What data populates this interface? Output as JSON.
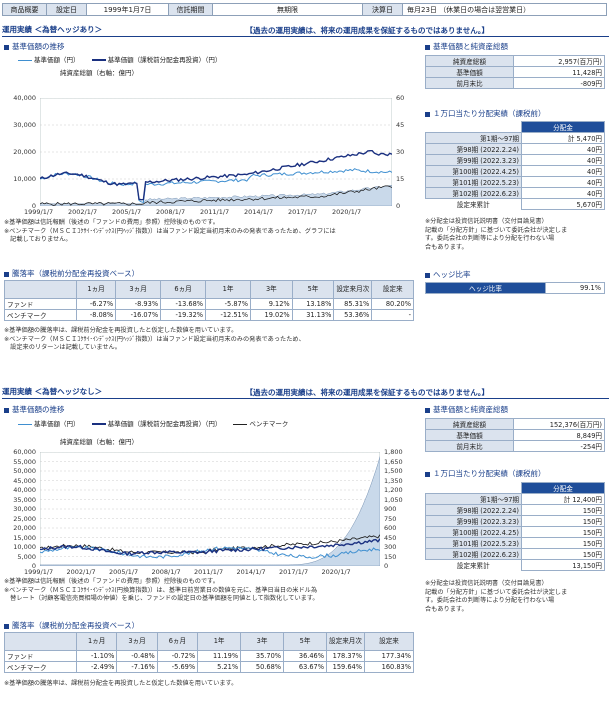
{
  "info": {
    "product_label": "商品概要",
    "setup_label": "設定日",
    "setup_value": "1999年1月7日",
    "term_label": "信託期間",
    "term_value": "無期限",
    "settle_label": "決算日",
    "settle_value": "毎月23日 （休業日の場合は翌営業日）"
  },
  "sections": [
    {
      "title": "運用実績 ＜為替ヘッジあり＞",
      "disclaimer": "【過去の運用実績は、将来の運用成果を保証するものではありません。】",
      "nav_title": "基準価額の推移",
      "legend": {
        "nav": "基準価額（円）",
        "reinvest": "基準価額（課税前分配金再投資）（円）",
        "bench": "",
        "aum": "純資産総額（右軸：億円）"
      },
      "yaxis_left": [
        "40,000",
        "30,000",
        "20,000",
        "10,000",
        "0"
      ],
      "yaxis_right": [
        "60",
        "45",
        "30",
        "15",
        "0"
      ],
      "xaxis": [
        "1999/1/7",
        "2002/1/7",
        "2005/1/7",
        "2008/1/7",
        "2011/1/7",
        "2014/1/7",
        "2017/1/7",
        "2020/1/7"
      ],
      "chart_notes": [
        "※基準価額は信託報酬（後述の「ファンドの費用」参照）控除後のものです。",
        "※ベンチマーク（ＭＳＣＩｺｸｻｲ･ｲﾝﾃﾞｯｸｽ(円ﾍｯｼﾞ指数)）は当ファンド設定当初月末のみの発表であったため、グラフには",
        "　記載しておりません。"
      ],
      "ret_title": "騰落率（課税前分配金再投資ベース）",
      "ret_headers": [
        "",
        "1ヵ月",
        "3ヵ月",
        "6ヵ月",
        "1年",
        "3年",
        "5年",
        "設定来月次",
        "設定来"
      ],
      "ret_rows": [
        [
          "ファンド",
          "-6.27%",
          "-8.93%",
          "-13.68%",
          "-5.87%",
          "9.12%",
          "13.18%",
          "85.31%",
          "80.20%"
        ],
        [
          "ベンチマーク",
          "-8.08%",
          "-16.07%",
          "-19.32%",
          "-12.51%",
          "19.02%",
          "31.13%",
          "53.36%",
          "-"
        ]
      ],
      "ret_notes": [
        "※基準価額の騰落率は、課税前分配金を再投資したと仮定した数値を用いています。",
        "※ベンチマーク（ＭＳＣＩｺｸｻｲ･ｲﾝﾃﾞｯｸｽ(円ﾍｯｼﾞ指数)）は当ファンド設定当初月末のみの発表であったため、",
        "　設定来のリターンは記載していません。"
      ],
      "nav_box_title": "基準価額と純資産総額",
      "nav_box": [
        [
          "純資産総額",
          "2,957(百万円)"
        ],
        [
          "基準価額",
          "11,428円"
        ],
        [
          "前月末比",
          "-809円"
        ]
      ],
      "dist_title": "１万口当たり分配実績（課税前）",
      "dist_header": "分配金",
      "dist_rows": [
        [
          "第1期～97期",
          "計 5,470円"
        ],
        [
          "第98期 (2022.2.24)",
          "40円"
        ],
        [
          "第99期 (2022.3.23)",
          "40円"
        ],
        [
          "第100期 (2022.4.25)",
          "40円"
        ],
        [
          "第101期 (2022.5.23)",
          "40円"
        ],
        [
          "第102期 (2022.6.23)",
          "40円"
        ],
        [
          "設定来累計",
          "5,670円"
        ]
      ],
      "dist_notes": [
        "※分配金は投資信託説明書（交付目論見書）",
        "記載の「分配方針」に基づいて委託会社が決定しま",
        "す。委託会社の判断等により分配を行わない場",
        "合もあります。"
      ],
      "hedge_title": "ヘッジ比率",
      "hedge_label": "ヘッジ比率",
      "hedge_value": "99.1%"
    },
    {
      "title": "運用実績 ＜為替ヘッジなし＞",
      "disclaimer": "【過去の運用実績は、将来の運用成果を保証するものではありません。】",
      "nav_title": "基準価額の推移",
      "legend": {
        "nav": "基準価額（円）",
        "reinvest": "基準価額（課税前分配金再投資）（円）",
        "bench": "ベンチマーク",
        "aum": "純資産総額（右軸：億円）"
      },
      "yaxis_left": [
        "60,000",
        "55,000",
        "50,000",
        "45,000",
        "40,000",
        "35,000",
        "30,000",
        "25,000",
        "20,000",
        "15,000",
        "10,000",
        "5,000",
        "0"
      ],
      "yaxis_right": [
        "1,800",
        "1,650",
        "1,500",
        "1,350",
        "1,200",
        "1,050",
        "900",
        "750",
        "600",
        "450",
        "300",
        "150",
        "0"
      ],
      "xaxis": [
        "1999/1/7",
        "2002/1/7",
        "2005/1/7",
        "2008/1/7",
        "2011/1/7",
        "2014/1/7",
        "2017/1/7",
        "2020/1/7"
      ],
      "chart_notes": [
        "※基準価額は信託報酬（後述の「ファンドの費用」参照）控除後のものです。",
        "※ベンチマーク（ＭＳＣＩｺｸｻｲ･ｲﾝﾃﾞｯｸｽ(円換算指数)）は、基準日前営業日の数値を元に、基準日当日の米ドル為",
        "　替レート（対顧客電信売買相場の仲値）を乗じ、ファンドの設定日の基準価額を同値として指数化しています。"
      ],
      "ret_title": "騰落率（課税前分配金再投資ベース）",
      "ret_headers": [
        "",
        "1ヵ月",
        "3ヵ月",
        "6ヵ月",
        "1年",
        "3年",
        "5年",
        "設定来月次",
        "設定来"
      ],
      "ret_rows": [
        [
          "ファンド",
          "-1.10%",
          "-0.48%",
          "-0.72%",
          "11.19%",
          "35.70%",
          "36.46%",
          "178.37%",
          "177.34%"
        ],
        [
          "ベンチマーク",
          "-2.49%",
          "-7.16%",
          "-5.69%",
          "5.21%",
          "50.68%",
          "63.67%",
          "159.64%",
          "160.83%"
        ]
      ],
      "ret_notes": [
        "※基準価額の騰落率は、課税前分配金を再投資したと仮定した数値を用いています。"
      ],
      "nav_box_title": "基準価額と純資産総額",
      "nav_box": [
        [
          "純資産総額",
          "152,376(百万円)"
        ],
        [
          "基準価額",
          "8,849円"
        ],
        [
          "前月末比",
          "-254円"
        ]
      ],
      "dist_title": "１万口当たり分配実績（課税前）",
      "dist_header": "分配金",
      "dist_rows": [
        [
          "第1期～97期",
          "計 12,400円"
        ],
        [
          "第98期 (2022.2.24)",
          "150円"
        ],
        [
          "第99期 (2022.3.23)",
          "150円"
        ],
        [
          "第100期 (2022.4.25)",
          "150円"
        ],
        [
          "第101期 (2022.5.23)",
          "150円"
        ],
        [
          "第102期 (2022.6.23)",
          "150円"
        ],
        [
          "設定来累計",
          "13,150円"
        ]
      ],
      "dist_notes": [
        "※分配金は投資信託説明書（交付目論見書）",
        "記載の「分配方針」に基づいて委託会社が決定しま",
        "す。委託会社の判断等により分配を行わない場",
        "合もあります。"
      ]
    }
  ],
  "colors": {
    "navy": "#1a3f8a",
    "nav_line": "#3f8fd0",
    "reinvest": "#1a3080",
    "bench": "#222222",
    "aum_fill": "#c9d9ea"
  }
}
